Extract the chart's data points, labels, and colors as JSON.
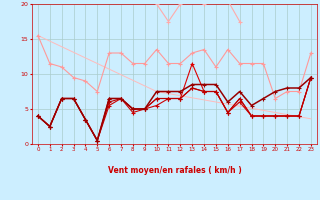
{
  "x": [
    0,
    1,
    2,
    3,
    4,
    5,
    6,
    7,
    8,
    9,
    10,
    11,
    12,
    13,
    14,
    15,
    16,
    17,
    18,
    19,
    20,
    21,
    22,
    23
  ],
  "line_trend": [
    15.5,
    14.7,
    13.9,
    13.1,
    12.3,
    11.5,
    10.7,
    9.9,
    9.1,
    8.3,
    7.5,
    7.2,
    6.9,
    6.6,
    6.3,
    6.0,
    5.7,
    5.4,
    5.1,
    4.8,
    4.5,
    4.2,
    3.9,
    3.6
  ],
  "line_highpink": [
    null,
    null,
    null,
    null,
    null,
    null,
    null,
    null,
    null,
    null,
    20.0,
    17.5,
    20.0,
    21.0,
    20.0,
    20.5,
    20.5,
    17.5,
    null,
    null,
    null,
    null,
    null,
    null
  ],
  "line_medpink": [
    15.5,
    11.5,
    11.0,
    9.5,
    9.0,
    7.5,
    13.0,
    13.0,
    11.5,
    11.5,
    13.5,
    11.5,
    11.5,
    13.0,
    13.5,
    11.0,
    13.5,
    11.5,
    11.5,
    11.5,
    6.5,
    7.5,
    7.5,
    13.0
  ],
  "line_r1": [
    4.0,
    2.5,
    6.5,
    6.5,
    3.5,
    0.5,
    6.5,
    6.5,
    5.0,
    5.0,
    6.5,
    6.5,
    6.5,
    11.5,
    7.5,
    7.5,
    4.5,
    6.5,
    4.0,
    4.0,
    4.0,
    4.0,
    4.0,
    9.5
  ],
  "line_r2": [
    4.0,
    2.5,
    6.5,
    6.5,
    3.5,
    0.5,
    5.5,
    6.5,
    4.5,
    5.0,
    5.5,
    6.5,
    6.5,
    8.0,
    7.5,
    7.5,
    4.5,
    6.0,
    4.0,
    4.0,
    4.0,
    4.0,
    4.0,
    9.5
  ],
  "line_r3": [
    4.0,
    2.5,
    6.5,
    6.5,
    3.5,
    0.5,
    6.0,
    6.5,
    5.0,
    5.0,
    6.5,
    6.5,
    6.5,
    8.0,
    7.5,
    7.5,
    4.5,
    6.5,
    4.0,
    4.0,
    4.0,
    4.0,
    4.0,
    9.5
  ],
  "line_r4": [
    4.0,
    2.5,
    6.5,
    6.5,
    3.5,
    0.5,
    6.5,
    6.5,
    5.0,
    5.0,
    7.5,
    7.5,
    7.5,
    8.5,
    8.5,
    8.5,
    6.0,
    7.5,
    5.5,
    6.5,
    7.5,
    8.0,
    8.0,
    9.5
  ],
  "arrows": [
    "←",
    "↖",
    "↗",
    "↖",
    "↖",
    "↙",
    "↙",
    "↓",
    "→",
    "→",
    "↗",
    "↗",
    "↓",
    "↓",
    "↓",
    "↓",
    "↓",
    "↘",
    "←",
    "←",
    "↓",
    "↘",
    "←",
    "←"
  ],
  "xlabel": "Vent moyen/en rafales ( km/h )",
  "ylim": [
    0,
    20
  ],
  "xlim": [
    -0.5,
    23.5
  ],
  "bg_color": "#cceeff",
  "grid_color": "#aacccc",
  "color_trend": "#ffbbbb",
  "color_highpink": "#ffaaaa",
  "color_medpink": "#ff9999",
  "color_dark1": "#dd0000",
  "color_dark2": "#cc0000",
  "color_dark3": "#bb0000",
  "color_dark4": "#990000"
}
